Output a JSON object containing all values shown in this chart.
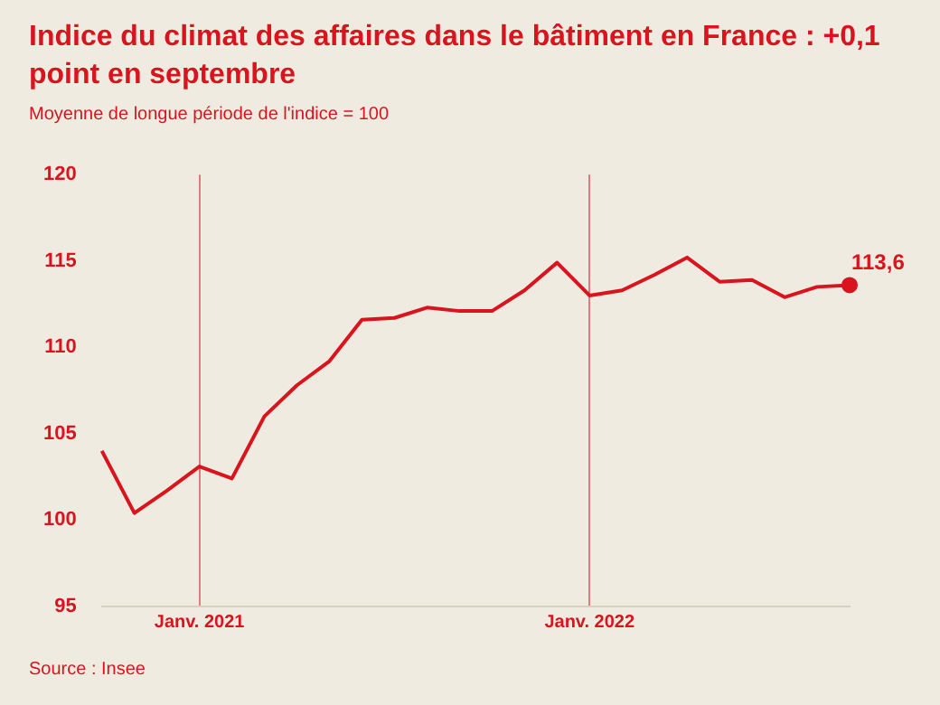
{
  "chart_data": {
    "type": "line",
    "title": "Indice du climat des affaires dans le bâtiment en France : +0,1 point en septembre",
    "subtitle": "Moyenne de longue période de l'indice = 100",
    "x": [
      "2020-10",
      "2020-11",
      "2020-12",
      "2021-01",
      "2021-02",
      "2021-03",
      "2021-04",
      "2021-05",
      "2021-06",
      "2021-07",
      "2021-08",
      "2021-09",
      "2021-10",
      "2021-11",
      "2021-12",
      "2022-01",
      "2022-02",
      "2022-03",
      "2022-04",
      "2022-05",
      "2022-06",
      "2022-07",
      "2022-08",
      "2022-09"
    ],
    "series": [
      {
        "color": "#d9141e",
        "values": [
          104.0,
          100.4,
          101.7,
          103.1,
          102.4,
          106.0,
          107.8,
          109.2,
          111.6,
          111.7,
          112.3,
          112.1,
          112.1,
          113.3,
          114.9,
          113.0,
          113.3,
          114.2,
          115.2,
          113.8,
          113.9,
          112.9,
          113.5,
          113.6
        ],
        "value_labels": [
          null,
          null,
          null,
          null,
          null,
          null,
          null,
          null,
          null,
          null,
          null,
          null,
          null,
          null,
          null,
          null,
          null,
          null,
          null,
          null,
          null,
          null,
          null,
          "113,6"
        ]
      }
    ],
    "xlim": [
      "2020-10",
      "2022-09"
    ],
    "xticks": [
      {
        "value": "2021-01",
        "label": "Janv. 2021"
      },
      {
        "value": "2022-01",
        "label": "Janv. 2022"
      }
    ],
    "ylim": [
      95,
      120
    ],
    "yticks": [
      95,
      100,
      105,
      110,
      115,
      120
    ],
    "grid": "x",
    "legend": false,
    "marker": "none",
    "line_style": "solid",
    "annotations": [
      "Source : Insee"
    ]
  }
}
